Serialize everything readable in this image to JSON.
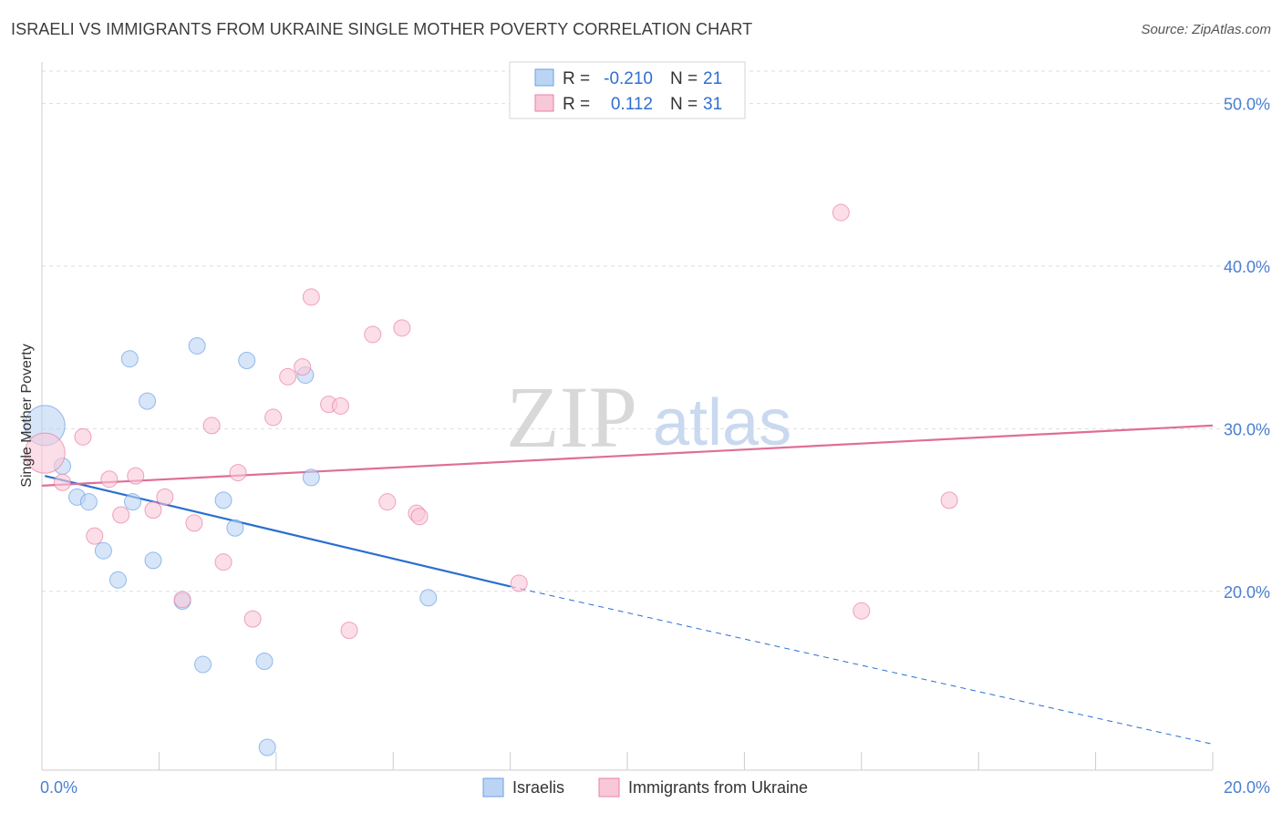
{
  "title": "ISRAELI VS IMMIGRANTS FROM UKRAINE SINGLE MOTHER POVERTY CORRELATION CHART",
  "source": "Source: ZipAtlas.com",
  "watermark": {
    "zip": "ZIP",
    "atlas": "atlas"
  },
  "colors": {
    "israelis": "#6aa1e6",
    "israelis_fill": "#bcd4f4",
    "ukraine": "#ea7fa3",
    "ukraine_fill": "#f8c8d8",
    "israelis_line": "#2a6fcf",
    "ukraine_line": "#e06e95",
    "grid": "#dddddd",
    "axis_text": "#4a7fd0"
  },
  "legend": {
    "rows": [
      {
        "r_label": "R = ",
        "r_value": "-0.210",
        "n_label": "N = ",
        "n_value": "21"
      },
      {
        "r_label": "R = ",
        "r_value": "0.112",
        "n_label": "N = ",
        "n_value": "31"
      }
    ]
  },
  "chart_data": {
    "type": "scatter",
    "xlabel": "",
    "ylabel": "Single Mother Poverty",
    "xlim": [
      0,
      20
    ],
    "ylim": [
      9,
      52
    ],
    "x_tick_labels": [
      "0.0%",
      "20.0%"
    ],
    "y_ticks": [
      20,
      30,
      40,
      50
    ],
    "y_tick_labels": [
      "20.0%",
      "30.0%",
      "40.0%",
      "50.0%"
    ],
    "grid": true,
    "legend_position": "bottom",
    "series": [
      {
        "name": "Israelis",
        "points": [
          [
            0.05,
            30.2
          ],
          [
            0.35,
            27.7
          ],
          [
            0.6,
            25.8
          ],
          [
            0.8,
            25.5
          ],
          [
            1.05,
            22.5
          ],
          [
            1.3,
            20.7
          ],
          [
            1.5,
            34.3
          ],
          [
            1.55,
            25.5
          ],
          [
            1.8,
            31.7
          ],
          [
            1.9,
            21.9
          ],
          [
            2.4,
            19.4
          ],
          [
            2.65,
            35.1
          ],
          [
            2.75,
            15.5
          ],
          [
            3.1,
            25.6
          ],
          [
            3.3,
            23.9
          ],
          [
            3.5,
            34.2
          ],
          [
            3.8,
            15.7
          ],
          [
            3.85,
            10.4
          ],
          [
            4.5,
            33.3
          ],
          [
            4.6,
            27.0
          ],
          [
            6.6,
            19.6
          ]
        ],
        "trend": {
          "x0": 0.05,
          "y0": 27.1,
          "x1": 8.0,
          "y1": 20.3,
          "dash_to_x": 20.0,
          "dash_to_y": 10.6
        }
      },
      {
        "name": "Immigrants from Ukraine",
        "points": [
          [
            0.05,
            28.5
          ],
          [
            0.35,
            26.7
          ],
          [
            0.7,
            29.5
          ],
          [
            0.9,
            23.4
          ],
          [
            1.15,
            26.9
          ],
          [
            1.35,
            24.7
          ],
          [
            1.6,
            27.1
          ],
          [
            1.9,
            25.0
          ],
          [
            2.1,
            25.8
          ],
          [
            2.4,
            19.5
          ],
          [
            2.6,
            24.2
          ],
          [
            2.9,
            30.2
          ],
          [
            3.1,
            21.8
          ],
          [
            3.35,
            27.3
          ],
          [
            3.6,
            18.3
          ],
          [
            3.95,
            30.7
          ],
          [
            4.2,
            33.2
          ],
          [
            4.45,
            33.8
          ],
          [
            4.6,
            38.1
          ],
          [
            4.9,
            31.5
          ],
          [
            5.1,
            31.4
          ],
          [
            5.25,
            17.6
          ],
          [
            5.65,
            35.8
          ],
          [
            5.9,
            25.5
          ],
          [
            6.15,
            36.2
          ],
          [
            6.4,
            24.8
          ],
          [
            6.45,
            24.6
          ],
          [
            8.15,
            20.5
          ],
          [
            13.65,
            43.3
          ],
          [
            14.0,
            18.8
          ],
          [
            15.5,
            25.6
          ]
        ],
        "trend": {
          "x0": 0.0,
          "y0": 26.5,
          "x1": 20.0,
          "y1": 30.2
        }
      }
    ],
    "large_points": {
      "Israelis": 0,
      "Immigrants from Ukraine": 0
    }
  },
  "bottom_legend": [
    {
      "label": "Israelis"
    },
    {
      "label": "Immigrants from Ukraine"
    }
  ]
}
